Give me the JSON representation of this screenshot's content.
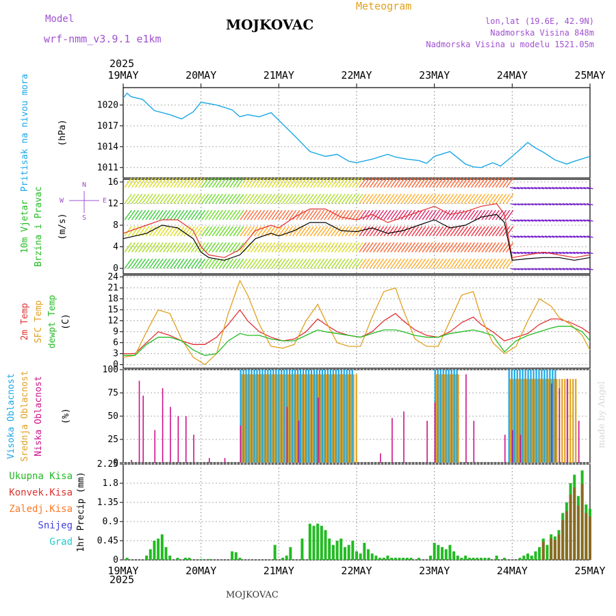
{
  "header": {
    "model_label": "Model",
    "model_name": "wrf-nmm_v3.9.1 e1km",
    "station": "MOJKOVAC",
    "meteogram": "Meteogram",
    "lonlat": "lon,lat (19.6E, 42.9N)",
    "elevation": "Nadmorska Visina 848m",
    "model_elevation": "Nadmorska Visina u modelu 1521.05m",
    "year": "2025",
    "footer_station": "MOJKOVAC",
    "watermark": "made by Angel"
  },
  "colors": {
    "pressure": "#1aa7e6",
    "wind_speed": "#000000",
    "gust": "#e03030",
    "temp2m": "#e03030",
    "sfc_temp": "#e0a020",
    "dewpt": "#22bb22",
    "cloud_high": "#1aa7e6",
    "cloud_mid": "#e0a020",
    "cloud_low": "#cc1188",
    "rain_total": "#22bb22",
    "rain_conv": "#e03030",
    "frozen": "#ff7722",
    "snow": "#4040dd",
    "graupel": "#22cccc",
    "purple_text": "#a050d0"
  },
  "chart_data": [
    {
      "type": "line",
      "title": "Pritisak na nivou mora",
      "ylabel": "(hPa)",
      "ylim": [
        1009.5,
        1022.5
      ],
      "yticks": [
        "1011",
        "1014",
        "1017",
        "1020"
      ],
      "x_tick_labels": [
        "19MAY",
        "20MAY",
        "21MAY",
        "22MAY",
        "23MAY",
        "24MAY",
        "25MAY"
      ],
      "series": [
        {
          "x": [
            0,
            0.05,
            0.1,
            0.25,
            0.4,
            0.6,
            0.75,
            0.9,
            1.0,
            1.2,
            1.4,
            1.5,
            1.6,
            1.75,
            1.9,
            2.0,
            2.2,
            2.4,
            2.6,
            2.75,
            2.9,
            3.0,
            3.2,
            3.4,
            3.5,
            3.65,
            3.8,
            3.9,
            4.0,
            4.2,
            4.4,
            4.5,
            4.6,
            4.75,
            4.85,
            5.0,
            5.2,
            5.3,
            5.4,
            5.55,
            5.7,
            5.8,
            6.0
          ],
          "values": [
            1021.0,
            1021.7,
            1021.2,
            1020.8,
            1019.2,
            1018.6,
            1018.0,
            1019.0,
            1020.4,
            1020.0,
            1019.3,
            1018.3,
            1018.6,
            1018.3,
            1018.9,
            1017.8,
            1015.6,
            1013.3,
            1012.6,
            1012.9,
            1011.9,
            1011.7,
            1012.2,
            1012.9,
            1012.5,
            1012.2,
            1012.0,
            1011.6,
            1012.6,
            1013.3,
            1011.5,
            1011.1,
            1011.0,
            1011.7,
            1011.2,
            1012.6,
            1014.6,
            1013.8,
            1013.2,
            1012.1,
            1011.5,
            1011.9,
            1012.6
          ]
        }
      ]
    },
    {
      "type": "line",
      "title": "10m Vjetar",
      "subtitle": "Brzina i Pravac",
      "ylabel": "(m/s)",
      "ylim": [
        -1,
        16.5
      ],
      "yticks": [
        "0",
        "4",
        "8",
        "12",
        "16"
      ],
      "compass": [
        "N",
        "W",
        "E",
        "S"
      ],
      "series": [
        {
          "name": "speed",
          "x": [
            0,
            0.3,
            0.5,
            0.7,
            0.9,
            1.0,
            1.1,
            1.3,
            1.5,
            1.7,
            1.9,
            2.0,
            2.2,
            2.4,
            2.6,
            2.8,
            3.0,
            3.2,
            3.4,
            3.6,
            3.8,
            4.0,
            4.2,
            4.4,
            4.6,
            4.8,
            4.9,
            5.0,
            5.2,
            5.4,
            5.6,
            5.8,
            6.0
          ],
          "values": [
            5.5,
            6.5,
            8.0,
            7.5,
            5.5,
            3.0,
            2.0,
            1.5,
            2.5,
            5.5,
            6.5,
            6.0,
            7.0,
            8.5,
            8.5,
            7.0,
            6.8,
            7.5,
            6.5,
            7.0,
            8.0,
            9.0,
            7.5,
            8.0,
            9.5,
            10.0,
            8.5,
            1.5,
            1.8,
            2.0,
            2.0,
            1.5,
            2.0
          ]
        },
        {
          "name": "gust",
          "x": [
            0,
            0.3,
            0.5,
            0.7,
            0.9,
            1.0,
            1.1,
            1.3,
            1.5,
            1.7,
            1.9,
            2.0,
            2.2,
            2.4,
            2.6,
            2.8,
            3.0,
            3.2,
            3.4,
            3.6,
            3.8,
            4.0,
            4.2,
            4.4,
            4.6,
            4.8,
            4.9,
            5.0,
            5.2,
            5.4,
            5.6,
            5.8,
            6.0
          ],
          "values": [
            6.5,
            8.0,
            9.0,
            9.0,
            7.0,
            4.0,
            2.5,
            2.0,
            3.5,
            7.0,
            8.0,
            7.5,
            9.5,
            11.0,
            11.0,
            9.5,
            9.0,
            10.0,
            8.5,
            9.5,
            10.5,
            11.5,
            10.0,
            10.5,
            11.5,
            12.0,
            10.0,
            2.0,
            2.5,
            3.0,
            2.5,
            2.0,
            2.5
          ]
        }
      ]
    },
    {
      "type": "line",
      "title": "2m Temp / SFC Temp / dewpt Temp",
      "ylabel": "(C)",
      "ylim": [
        -1,
        24.5
      ],
      "yticks": [
        "0",
        "3",
        "6",
        "9",
        "12",
        "15",
        "18",
        "21",
        "24"
      ],
      "series": [
        {
          "name": "2m Temp",
          "x": [
            0,
            0.15,
            0.3,
            0.45,
            0.6,
            0.75,
            0.9,
            1.05,
            1.2,
            1.35,
            1.5,
            1.6,
            1.75,
            1.9,
            2.05,
            2.2,
            2.35,
            2.5,
            2.6,
            2.75,
            2.9,
            3.05,
            3.2,
            3.35,
            3.5,
            3.6,
            3.75,
            3.9,
            4.05,
            4.2,
            4.35,
            4.5,
            4.6,
            4.75,
            4.9,
            5.05,
            5.2,
            5.35,
            5.5,
            5.6,
            5.75,
            5.9,
            6.0
          ],
          "values": [
            3,
            3,
            6,
            9,
            8,
            6.5,
            5.5,
            5.5,
            7.5,
            11,
            15,
            12,
            9,
            7.5,
            6.5,
            7,
            9,
            12.5,
            11,
            9,
            8,
            7.5,
            9,
            12,
            14,
            12,
            9.5,
            8,
            7.5,
            9,
            11.5,
            13,
            11,
            9,
            6.5,
            7.5,
            8.5,
            11,
            12.5,
            12.5,
            11.5,
            10,
            8.5
          ]
        },
        {
          "name": "SFC Temp",
          "x": [
            0,
            0.15,
            0.3,
            0.45,
            0.6,
            0.75,
            0.9,
            1.05,
            1.2,
            1.35,
            1.5,
            1.6,
            1.75,
            1.9,
            2.05,
            2.2,
            2.35,
            2.5,
            2.6,
            2.75,
            2.9,
            3.05,
            3.2,
            3.35,
            3.5,
            3.6,
            3.75,
            3.9,
            4.05,
            4.2,
            4.35,
            4.5,
            4.6,
            4.75,
            4.9,
            5.05,
            5.2,
            5.35,
            5.5,
            5.6,
            5.75,
            5.9,
            6.0
          ],
          "values": [
            2,
            2.5,
            9,
            15,
            14,
            7,
            2,
            0,
            3,
            14,
            23,
            19,
            11,
            5,
            4.5,
            5.5,
            12,
            16.5,
            12,
            6,
            5,
            5,
            13,
            20,
            21,
            15,
            7,
            5,
            5,
            12,
            19,
            20,
            13,
            6,
            3,
            5,
            12,
            18,
            16,
            13,
            11,
            8,
            4
          ]
        },
        {
          "name": "dewpt Temp",
          "x": [
            0,
            0.15,
            0.3,
            0.45,
            0.6,
            0.75,
            0.9,
            1.05,
            1.2,
            1.35,
            1.5,
            1.6,
            1.75,
            1.9,
            2.05,
            2.2,
            2.35,
            2.5,
            2.6,
            2.75,
            2.9,
            3.05,
            3.2,
            3.35,
            3.5,
            3.6,
            3.75,
            3.9,
            4.05,
            4.2,
            4.35,
            4.5,
            4.6,
            4.75,
            4.9,
            5.05,
            5.2,
            5.35,
            5.5,
            5.6,
            5.75,
            5.9,
            6.0
          ],
          "values": [
            2.5,
            2.5,
            5.5,
            7.5,
            7.5,
            6.5,
            4,
            2.5,
            3,
            6.5,
            8.5,
            8,
            8,
            7,
            6.5,
            6.5,
            8,
            9.5,
            9,
            8.5,
            8,
            7.5,
            8.5,
            9.5,
            9.5,
            9,
            8,
            7.5,
            7.5,
            8.5,
            9,
            9.5,
            9,
            8,
            3.5,
            6.5,
            8,
            9,
            10,
            10.5,
            10.5,
            9,
            6.5
          ]
        }
      ]
    },
    {
      "type": "bar",
      "title": "Visoka Oblacnost / Srednja Oblacnost / Niska Oblacnost",
      "ylabel": "(%)",
      "ylim": [
        0,
        100
      ],
      "yticks": [
        "0",
        "25",
        "50",
        "75",
        "100"
      ],
      "series": [
        {
          "name": "Visoka Oblacnost",
          "ranges": [
            [
              1.5,
              2.95,
              100
            ],
            [
              4.0,
              4.3,
              100
            ],
            [
              4.95,
              5.55,
              100
            ]
          ]
        },
        {
          "name": "Srednja Oblacnost",
          "ranges": [
            [
              1.5,
              3.0,
              95
            ],
            [
              4.0,
              4.3,
              95
            ],
            [
              4.95,
              5.8,
              90
            ]
          ]
        },
        {
          "name": "Niska Oblacnost",
          "x": [
            0.1,
            0.2,
            0.25,
            0.4,
            0.5,
            0.6,
            0.7,
            0.8,
            0.9,
            1.1,
            1.3,
            1.5,
            2.1,
            2.25,
            2.5,
            3.3,
            3.45,
            3.6,
            3.9,
            4.0,
            4.4,
            4.5,
            4.9,
            5.0,
            5.1,
            5.5,
            5.6,
            5.7,
            5.85
          ],
          "values": [
            3,
            88,
            72,
            35,
            80,
            60,
            50,
            50,
            30,
            5,
            5,
            40,
            60,
            45,
            70,
            10,
            48,
            55,
            45,
            65,
            95,
            45,
            30,
            35,
            30,
            85,
            80,
            90,
            45
          ]
        }
      ]
    },
    {
      "type": "bar",
      "title": "Ukupna Kisa",
      "ylabel": "1hr Precip (mm)",
      "ylim": [
        0,
        2.25
      ],
      "yticks": [
        "0",
        "0.45",
        "0.9",
        "1.35",
        "1.8",
        "2.25"
      ],
      "x_tick_labels": [
        "19MAY",
        "20MAY",
        "21MAY",
        "22MAY",
        "23MAY",
        "24MAY",
        "25MAY"
      ],
      "legend": [
        "Ukupna Kisa",
        "Konvek.Kisa",
        "Zaledj.Kisa",
        "Snijeg",
        "Grad"
      ],
      "x": [
        0.05,
        0.3,
        0.35,
        0.4,
        0.45,
        0.5,
        0.55,
        0.6,
        0.7,
        0.8,
        0.85,
        1.0,
        1.1,
        1.4,
        1.45,
        1.5,
        1.95,
        2.05,
        2.1,
        2.15,
        2.3,
        2.4,
        2.45,
        2.5,
        2.55,
        2.6,
        2.65,
        2.7,
        2.75,
        2.8,
        2.85,
        2.9,
        2.95,
        3.0,
        3.05,
        3.1,
        3.15,
        3.2,
        3.25,
        3.3,
        3.35,
        3.4,
        3.45,
        3.5,
        3.55,
        3.6,
        3.65,
        3.7,
        3.8,
        3.95,
        4.0,
        4.05,
        4.1,
        4.15,
        4.2,
        4.25,
        4.3,
        4.35,
        4.4,
        4.45,
        4.5,
        4.55,
        4.6,
        4.65,
        4.7,
        4.8,
        4.9,
        5.1,
        5.15,
        5.2,
        5.25,
        5.3,
        5.35,
        5.4,
        5.45,
        5.5,
        5.55,
        5.6,
        5.65,
        5.7,
        5.75,
        5.8,
        5.85,
        5.9,
        5.95,
        6.0
      ],
      "values": [
        0.05,
        0.1,
        0.25,
        0.45,
        0.5,
        0.6,
        0.3,
        0.1,
        0.05,
        0.05,
        0.05,
        0.02,
        0.02,
        0.2,
        0.18,
        0.05,
        0.35,
        0.05,
        0.1,
        0.3,
        0.5,
        0.85,
        0.8,
        0.85,
        0.8,
        0.7,
        0.5,
        0.35,
        0.45,
        0.5,
        0.3,
        0.35,
        0.45,
        0.2,
        0.15,
        0.4,
        0.25,
        0.15,
        0.1,
        0.05,
        0.05,
        0.1,
        0.05,
        0.05,
        0.05,
        0.05,
        0.05,
        0.05,
        0.05,
        0.1,
        0.4,
        0.35,
        0.3,
        0.25,
        0.35,
        0.2,
        0.1,
        0.05,
        0.1,
        0.05,
        0.05,
        0.05,
        0.05,
        0.05,
        0.05,
        0.1,
        0.05,
        0.05,
        0.1,
        0.15,
        0.1,
        0.2,
        0.3,
        0.5,
        0.35,
        0.6,
        0.55,
        0.7,
        1.1,
        1.35,
        1.8,
        2.0,
        1.5,
        2.1,
        1.3,
        1.2
      ]
    }
  ]
}
